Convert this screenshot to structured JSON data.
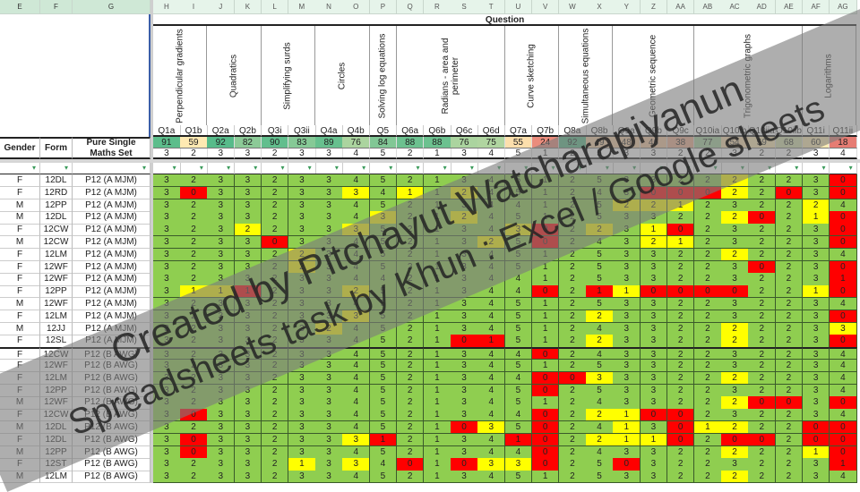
{
  "columns_left": [
    "E",
    "F",
    "G"
  ],
  "columns_right": [
    "H",
    "I",
    "J",
    "K",
    "L",
    "M",
    "N",
    "O",
    "P",
    "Q",
    "R",
    "S",
    "T",
    "U",
    "V",
    "W",
    "X",
    "Y",
    "Z",
    "AA",
    "AB",
    "AC",
    "AD",
    "AE",
    "AF",
    "AG"
  ],
  "question_header": "Question",
  "left_headers": {
    "gender": "Gender",
    "form": "Form",
    "set": "Pure Single Maths Set"
  },
  "topics": [
    {
      "label": "Perpendicular gradients",
      "span": 2
    },
    {
      "label": "Quadratics",
      "span": 2
    },
    {
      "label": "Simplifying surds",
      "span": 2
    },
    {
      "label": "Circles",
      "span": 2
    },
    {
      "label": "Solving log equations",
      "span": 1
    },
    {
      "label": "Radians - area and perimeter",
      "span": 4
    },
    {
      "label": "Curve sketching",
      "span": 2
    },
    {
      "label": "Simultaneous equations",
      "span": 2
    },
    {
      "label": "Geometric sequence",
      "span": 3
    },
    {
      "label": "Trigonometric graphs",
      "span": 4
    },
    {
      "label": "Logarithms",
      "span": 2
    }
  ],
  "questions": [
    "Q1a",
    "Q1b",
    "Q2a",
    "Q2b",
    "Q3i",
    "Q3ii",
    "Q4a",
    "Q4b",
    "Q5",
    "Q6a",
    "Q6b",
    "Q6c",
    "Q6d",
    "Q7a",
    "Q7b",
    "Q8a",
    "Q8b",
    "Q9a",
    "Q9b",
    "Q9c",
    "Q10ia",
    "Q10ib",
    "Q10iia",
    "Q10iib",
    "Q11i",
    "Q11ii"
  ],
  "percentages": [
    91,
    59,
    92,
    82,
    90,
    83,
    89,
    76,
    84,
    88,
    88,
    76,
    75,
    55,
    24,
    92,
    49,
    48,
    46,
    38,
    77,
    54,
    59,
    68,
    60,
    18
  ],
  "max_marks": [
    3,
    2,
    3,
    3,
    2,
    3,
    3,
    4,
    5,
    2,
    1,
    3,
    4,
    5,
    1,
    2,
    5,
    3,
    3,
    2,
    2,
    3,
    2,
    2,
    3,
    4
  ],
  "fill_colors": {
    "G": "#8fce50",
    "Y": "#ffff00",
    "R": "#ff0000"
  },
  "filter_icon": "filter-icon",
  "rows": [
    {
      "gender": "F",
      "form": "12DL",
      "set": "P12 (A MJM)",
      "scores": [
        3,
        2,
        3,
        3,
        2,
        3,
        3,
        4,
        5,
        2,
        1,
        3,
        4,
        5,
        1,
        2,
        5,
        3,
        3,
        2,
        2,
        2,
        2,
        2,
        3,
        0
      ],
      "fill": "GGGGGGGGGGGGGGGGGGGGGYGGGR"
    },
    {
      "gender": "F",
      "form": "12RD",
      "set": "P12 (A MJM)",
      "scores": [
        3,
        0,
        3,
        3,
        2,
        3,
        3,
        3,
        4,
        1,
        1,
        2,
        4,
        5,
        1,
        2,
        4,
        3,
        0,
        0,
        0,
        2,
        2,
        0,
        3,
        0
      ],
      "fill": "GRGGGGGYGYGYGGGGGGRRRYGRGR"
    },
    {
      "gender": "M",
      "form": "12PP",
      "set": "P12 (A MJM)",
      "scores": [
        3,
        2,
        3,
        3,
        2,
        3,
        3,
        4,
        5,
        2,
        1,
        3,
        4,
        4,
        1,
        2,
        5,
        2,
        2,
        1,
        2,
        3,
        2,
        2,
        2,
        4
      ],
      "fill": "GGGGGGGGGGGGGGGGGYYYGGGGYG"
    },
    {
      "gender": "M",
      "form": "12DL",
      "set": "P12 (A MJM)",
      "scores": [
        3,
        2,
        3,
        3,
        2,
        3,
        3,
        4,
        3,
        2,
        1,
        2,
        4,
        5,
        1,
        2,
        5,
        3,
        3,
        2,
        2,
        2,
        0,
        2,
        1,
        0
      ],
      "fill": "GGGGGGGGYGGYGGGGGGGGGYRGYR"
    },
    {
      "gender": "F",
      "form": "12CW",
      "set": "P12 (A MJM)",
      "scores": [
        3,
        2,
        3,
        2,
        2,
        3,
        3,
        3,
        5,
        2,
        1,
        3,
        4,
        3,
        0,
        2,
        2,
        3,
        1,
        0,
        2,
        3,
        2,
        2,
        3,
        0
      ],
      "fill": "GGGYGGGYGGGGGYRGYGYRGGGGGR"
    },
    {
      "gender": "M",
      "form": "12CW",
      "set": "P12 (A MJM)",
      "scores": [
        3,
        2,
        3,
        3,
        0,
        3,
        3,
        4,
        5,
        2,
        1,
        3,
        2,
        5,
        0,
        2,
        4,
        3,
        2,
        1,
        2,
        3,
        2,
        2,
        3,
        0
      ],
      "fill": "GGGGRGGGGGGGYGRGGGYYGGGGGR"
    },
    {
      "gender": "F",
      "form": "12LM",
      "set": "P12 (A MJM)",
      "scores": [
        3,
        2,
        3,
        3,
        2,
        2,
        3,
        4,
        5,
        2,
        1,
        3,
        4,
        5,
        1,
        2,
        5,
        3,
        3,
        2,
        2,
        2,
        2,
        2,
        3,
        4
      ],
      "fill": "GGGGGYGGGGGGGGGGGGGGGYGGGG"
    },
    {
      "gender": "F",
      "form": "12WF",
      "set": "P12 (A MJM)",
      "scores": [
        3,
        2,
        3,
        3,
        2,
        2,
        3,
        4,
        5,
        2,
        1,
        3,
        4,
        5,
        1,
        2,
        5,
        3,
        3,
        2,
        2,
        3,
        0,
        2,
        3,
        0
      ],
      "fill": "GGGGGYGGGGGGGGGGGGGGGGRGGR"
    },
    {
      "gender": "F",
      "form": "12WF",
      "set": "P12 (A MJM)",
      "scores": [
        3,
        2,
        3,
        3,
        2,
        3,
        3,
        4,
        4,
        2,
        1,
        3,
        4,
        4,
        1,
        2,
        5,
        3,
        3,
        2,
        2,
        3,
        2,
        2,
        3,
        1
      ],
      "fill": "GGGGGGGGGGGGGGGGGGGGGGGGGR"
    },
    {
      "gender": "F",
      "form": "12PP",
      "set": "P12 (A MJM)",
      "scores": [
        3,
        1,
        1,
        1,
        2,
        3,
        3,
        2,
        5,
        2,
        1,
        3,
        4,
        4,
        0,
        2,
        1,
        1,
        0,
        0,
        0,
        0,
        2,
        2,
        1,
        0
      ],
      "fill": "GYYRGGGYGGGGGGRGRYRRRRGGYR"
    },
    {
      "gender": "M",
      "form": "12WF",
      "set": "P12 (A MJM)",
      "scores": [
        3,
        2,
        3,
        3,
        2,
        3,
        3,
        4,
        5,
        2,
        1,
        3,
        4,
        5,
        1,
        2,
        5,
        3,
        3,
        2,
        2,
        3,
        2,
        2,
        3,
        4
      ],
      "fill": "GGGGGGGGGGGGGGGGGGGGGGGGGG"
    },
    {
      "gender": "F",
      "form": "12LM",
      "set": "P12 (A MJM)",
      "scores": [
        3,
        2,
        3,
        3,
        2,
        3,
        3,
        3,
        5,
        2,
        1,
        3,
        4,
        5,
        1,
        2,
        2,
        3,
        3,
        2,
        2,
        3,
        2,
        2,
        3,
        0
      ],
      "fill": "GGGGGGGYGGGGGGGGYGGGGGGGGR"
    },
    {
      "gender": "M",
      "form": "12JJ",
      "set": "P12 (A MJM)",
      "scores": [
        3,
        2,
        3,
        3,
        2,
        3,
        2,
        4,
        5,
        2,
        1,
        3,
        4,
        5,
        1,
        2,
        4,
        3,
        3,
        2,
        2,
        2,
        2,
        2,
        3,
        3
      ],
      "fill": "GGGGGGYGGGGGGGGGGGGGGYGGGY"
    },
    {
      "gender": "F",
      "form": "12SL",
      "set": "P12 (A MJM)",
      "scores": [
        3,
        2,
        3,
        3,
        2,
        3,
        3,
        4,
        5,
        2,
        1,
        0,
        1,
        5,
        1,
        2,
        2,
        3,
        3,
        2,
        2,
        2,
        2,
        2,
        3,
        0
      ],
      "fill": "GGGGGGGGGGGRRGGGYGGGGYGGGR"
    },
    {
      "gender": "F",
      "form": "12CW",
      "set": "P12 (B AWG)",
      "scores": [
        3,
        2,
        3,
        3,
        2,
        3,
        3,
        4,
        5,
        2,
        1,
        3,
        4,
        4,
        0,
        2,
        4,
        3,
        3,
        2,
        2,
        3,
        2,
        2,
        3,
        4
      ],
      "fill": "GGGGGGGGGGGGGGRGGGGGGGGGGG"
    },
    {
      "gender": "F",
      "form": "12WF",
      "set": "P12 (B AWG)",
      "scores": [
        3,
        2,
        3,
        3,
        2,
        3,
        3,
        4,
        5,
        2,
        1,
        3,
        4,
        5,
        1,
        2,
        5,
        3,
        3,
        2,
        2,
        3,
        2,
        2,
        3,
        4
      ],
      "fill": "GGGGGGGGGGGGGGGGGGGGGGGGGG"
    },
    {
      "gender": "F",
      "form": "12LM",
      "set": "P12 (B AWG)",
      "scores": [
        3,
        2,
        3,
        3,
        2,
        3,
        3,
        4,
        5,
        2,
        1,
        3,
        4,
        4,
        0,
        0,
        3,
        3,
        3,
        2,
        2,
        2,
        2,
        2,
        3,
        4
      ],
      "fill": "GGGGGGGGGGGGGGRRYGGGGYGGGG"
    },
    {
      "gender": "F",
      "form": "12PP",
      "set": "P12 (B AWG)",
      "scores": [
        3,
        2,
        3,
        3,
        2,
        3,
        3,
        4,
        5,
        2,
        1,
        3,
        4,
        5,
        0,
        2,
        5,
        3,
        3,
        2,
        2,
        3,
        2,
        2,
        3,
        4
      ],
      "fill": "GGGGGGGGGGGGGGRGGGGGGGGGGG"
    },
    {
      "gender": "M",
      "form": "12WF",
      "set": "P12 (B AWG)",
      "scores": [
        3,
        2,
        3,
        3,
        2,
        3,
        3,
        4,
        5,
        2,
        1,
        3,
        4,
        5,
        1,
        2,
        4,
        3,
        3,
        2,
        2,
        2,
        0,
        0,
        3,
        0
      ],
      "fill": "GGGGGGGGGGGGGGGGGGGGGYRRGR"
    },
    {
      "gender": "F",
      "form": "12CW",
      "set": "P12 (B AWG)",
      "scores": [
        3,
        0,
        3,
        3,
        2,
        3,
        3,
        4,
        5,
        2,
        1,
        3,
        4,
        4,
        0,
        2,
        2,
        1,
        0,
        0,
        2,
        3,
        2,
        2,
        3,
        4
      ],
      "fill": "GRGGGGGGGGGGGGRGYYRRGGGGGG"
    },
    {
      "gender": "M",
      "form": "12DL",
      "set": "P12 (B AWG)",
      "scores": [
        3,
        2,
        3,
        3,
        2,
        3,
        3,
        4,
        5,
        2,
        1,
        0,
        3,
        5,
        0,
        2,
        4,
        1,
        3,
        0,
        1,
        2,
        2,
        2,
        0,
        0
      ],
      "fill": "GGGGGGGGGGGRYGRGGYGRYYGGRR"
    },
    {
      "gender": "F",
      "form": "12DL",
      "set": "P12 (B AWG)",
      "scores": [
        3,
        0,
        3,
        3,
        2,
        3,
        3,
        3,
        1,
        2,
        1,
        3,
        4,
        1,
        0,
        2,
        2,
        1,
        1,
        0,
        2,
        0,
        0,
        2,
        0,
        0
      ],
      "fill": "GRGGGGGYRGGGGRRGYYYRGRRGRR"
    },
    {
      "gender": "M",
      "form": "12PP",
      "set": "P12 (B AWG)",
      "scores": [
        3,
        0,
        3,
        3,
        2,
        3,
        3,
        4,
        5,
        2,
        1,
        3,
        4,
        4,
        0,
        2,
        4,
        3,
        3,
        2,
        2,
        2,
        2,
        2,
        1,
        0
      ],
      "fill": "GRGGGGGGGGGGGGRGGGGGGYGGYR"
    },
    {
      "gender": "F",
      "form": "12ST",
      "set": "P12 (B AWG)",
      "scores": [
        3,
        2,
        3,
        3,
        2,
        1,
        3,
        3,
        4,
        0,
        1,
        0,
        3,
        3,
        0,
        2,
        5,
        0,
        3,
        2,
        2,
        3,
        2,
        2,
        3,
        1
      ],
      "fill": "GGGGGYGYGRGRYYRGGRGGGGGGGR"
    },
    {
      "gender": "M",
      "form": "12LM",
      "set": "P12 (B AWG)",
      "scores": [
        3,
        2,
        3,
        3,
        2,
        3,
        3,
        4,
        5,
        2,
        1,
        3,
        4,
        5,
        1,
        2,
        5,
        3,
        3,
        2,
        2,
        2,
        2,
        2,
        3,
        4
      ],
      "fill": "GGGGGGGGGGGGGGGGGGGGGYGGGG"
    }
  ],
  "watermark": {
    "line1": "Created by Pitchayut Watcharapiyanun",
    "line2": "Spreadsheets task by Khun : Excel / Google sheets"
  }
}
